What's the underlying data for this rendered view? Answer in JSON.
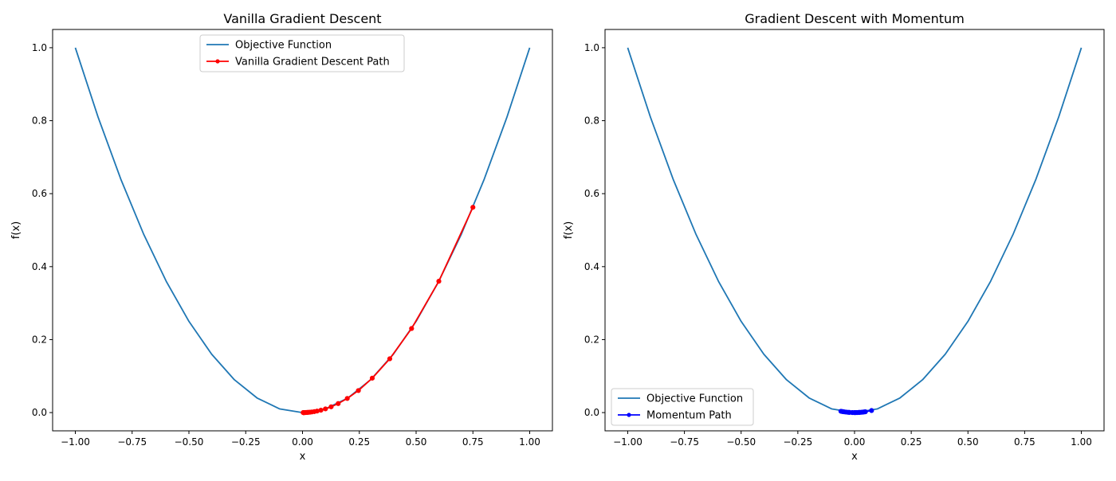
{
  "colors": {
    "objective": "#1f77b4",
    "vanilla": "#ff0000",
    "momentum": "#0000ff"
  },
  "chart_data": [
    {
      "type": "line",
      "title": "Vanilla Gradient Descent",
      "xlabel": "x",
      "ylabel": "f(x)",
      "xlim": [
        -1.1,
        1.1
      ],
      "ylim": [
        -0.05,
        1.05
      ],
      "xticks": [
        -1.0,
        -0.75,
        -0.5,
        -0.25,
        0.0,
        0.25,
        0.5,
        0.75,
        1.0
      ],
      "xtick_labels": [
        "−1.00",
        "−0.75",
        "−0.50",
        "−0.25",
        "0.00",
        "0.25",
        "0.50",
        "0.75",
        "1.00"
      ],
      "yticks": [
        0.0,
        0.2,
        0.4,
        0.6,
        0.8,
        1.0
      ],
      "ytick_labels": [
        "0.0",
        "0.2",
        "0.4",
        "0.6",
        "0.8",
        "1.0"
      ],
      "legend_position": "upper-center",
      "grid": false,
      "series": [
        {
          "name": "Objective Function",
          "marker": false,
          "x": [
            -1.0,
            -0.9,
            -0.8,
            -0.7,
            -0.6,
            -0.5,
            -0.4,
            -0.3,
            -0.2,
            -0.1,
            0.0,
            0.1,
            0.2,
            0.3,
            0.4,
            0.5,
            0.6,
            0.7,
            0.8,
            0.9,
            1.0
          ],
          "y": [
            1.0,
            0.81,
            0.64,
            0.49,
            0.36,
            0.25,
            0.16,
            0.09,
            0.04,
            0.01,
            0.0,
            0.01,
            0.04,
            0.09,
            0.16,
            0.25,
            0.36,
            0.49,
            0.64,
            0.81,
            1.0
          ]
        },
        {
          "name": "Vanilla Gradient Descent Path",
          "marker": true,
          "x": [
            0.75,
            0.6,
            0.48,
            0.384,
            0.307,
            0.246,
            0.197,
            0.157,
            0.126,
            0.101,
            0.081,
            0.064,
            0.052,
            0.041,
            0.033,
            0.026,
            0.021,
            0.017,
            0.013,
            0.011,
            0.009,
            0.007,
            0.005,
            0.004,
            0.003
          ],
          "y": [
            0.5625,
            0.36,
            0.2304,
            0.1475,
            0.0944,
            0.0604,
            0.0387,
            0.0247,
            0.0158,
            0.0101,
            0.0065,
            0.0041,
            0.0027,
            0.0017,
            0.0011,
            0.0007,
            0.0004,
            0.0003,
            0.0002,
            0.0001,
            0.0001,
            0.0,
            0.0,
            0.0,
            0.0
          ]
        }
      ]
    },
    {
      "type": "line",
      "title": "Gradient Descent with Momentum",
      "xlabel": "x",
      "ylabel": "f(x)",
      "xlim": [
        -1.1,
        1.1
      ],
      "ylim": [
        -0.05,
        1.05
      ],
      "xticks": [
        -1.0,
        -0.75,
        -0.5,
        -0.25,
        0.0,
        0.25,
        0.5,
        0.75,
        1.0
      ],
      "xtick_labels": [
        "−1.00",
        "−0.75",
        "−0.50",
        "−0.25",
        "0.00",
        "0.25",
        "0.50",
        "0.75",
        "1.00"
      ],
      "yticks": [
        0.0,
        0.2,
        0.4,
        0.6,
        0.8,
        1.0
      ],
      "ytick_labels": [
        "0.0",
        "0.2",
        "0.4",
        "0.6",
        "0.8",
        "1.0"
      ],
      "legend_position": "lower-left",
      "grid": false,
      "series": [
        {
          "name": "Objective Function",
          "marker": false,
          "x": [
            -1.0,
            -0.9,
            -0.8,
            -0.7,
            -0.6,
            -0.5,
            -0.4,
            -0.3,
            -0.2,
            -0.1,
            0.0,
            0.1,
            0.2,
            0.3,
            0.4,
            0.5,
            0.6,
            0.7,
            0.8,
            0.9,
            1.0
          ],
          "y": [
            1.0,
            0.81,
            0.64,
            0.49,
            0.36,
            0.25,
            0.16,
            0.09,
            0.04,
            0.01,
            0.0,
            0.01,
            0.04,
            0.09,
            0.16,
            0.25,
            0.36,
            0.49,
            0.64,
            0.81,
            1.0
          ]
        },
        {
          "name": "Momentum Path",
          "marker": true,
          "x": [
            0.075,
            0.048,
            0.035,
            0.02,
            0.005,
            -0.01,
            -0.022,
            -0.03,
            -0.045,
            -0.055,
            -0.06,
            -0.05,
            -0.038,
            -0.025,
            -0.01,
            0.0,
            0.01,
            0.02,
            0.03,
            0.04,
            0.045,
            0.035,
            0.025,
            0.012,
            0.0
          ],
          "y": [
            0.0056,
            0.0023,
            0.0012,
            0.0004,
            0.0,
            0.0001,
            0.0005,
            0.0009,
            0.002,
            0.003,
            0.0036,
            0.0025,
            0.0014,
            0.0006,
            0.0001,
            0.0,
            0.0001,
            0.0004,
            0.0009,
            0.0016,
            0.002,
            0.0012,
            0.0006,
            0.0001,
            0.0
          ]
        }
      ]
    }
  ]
}
